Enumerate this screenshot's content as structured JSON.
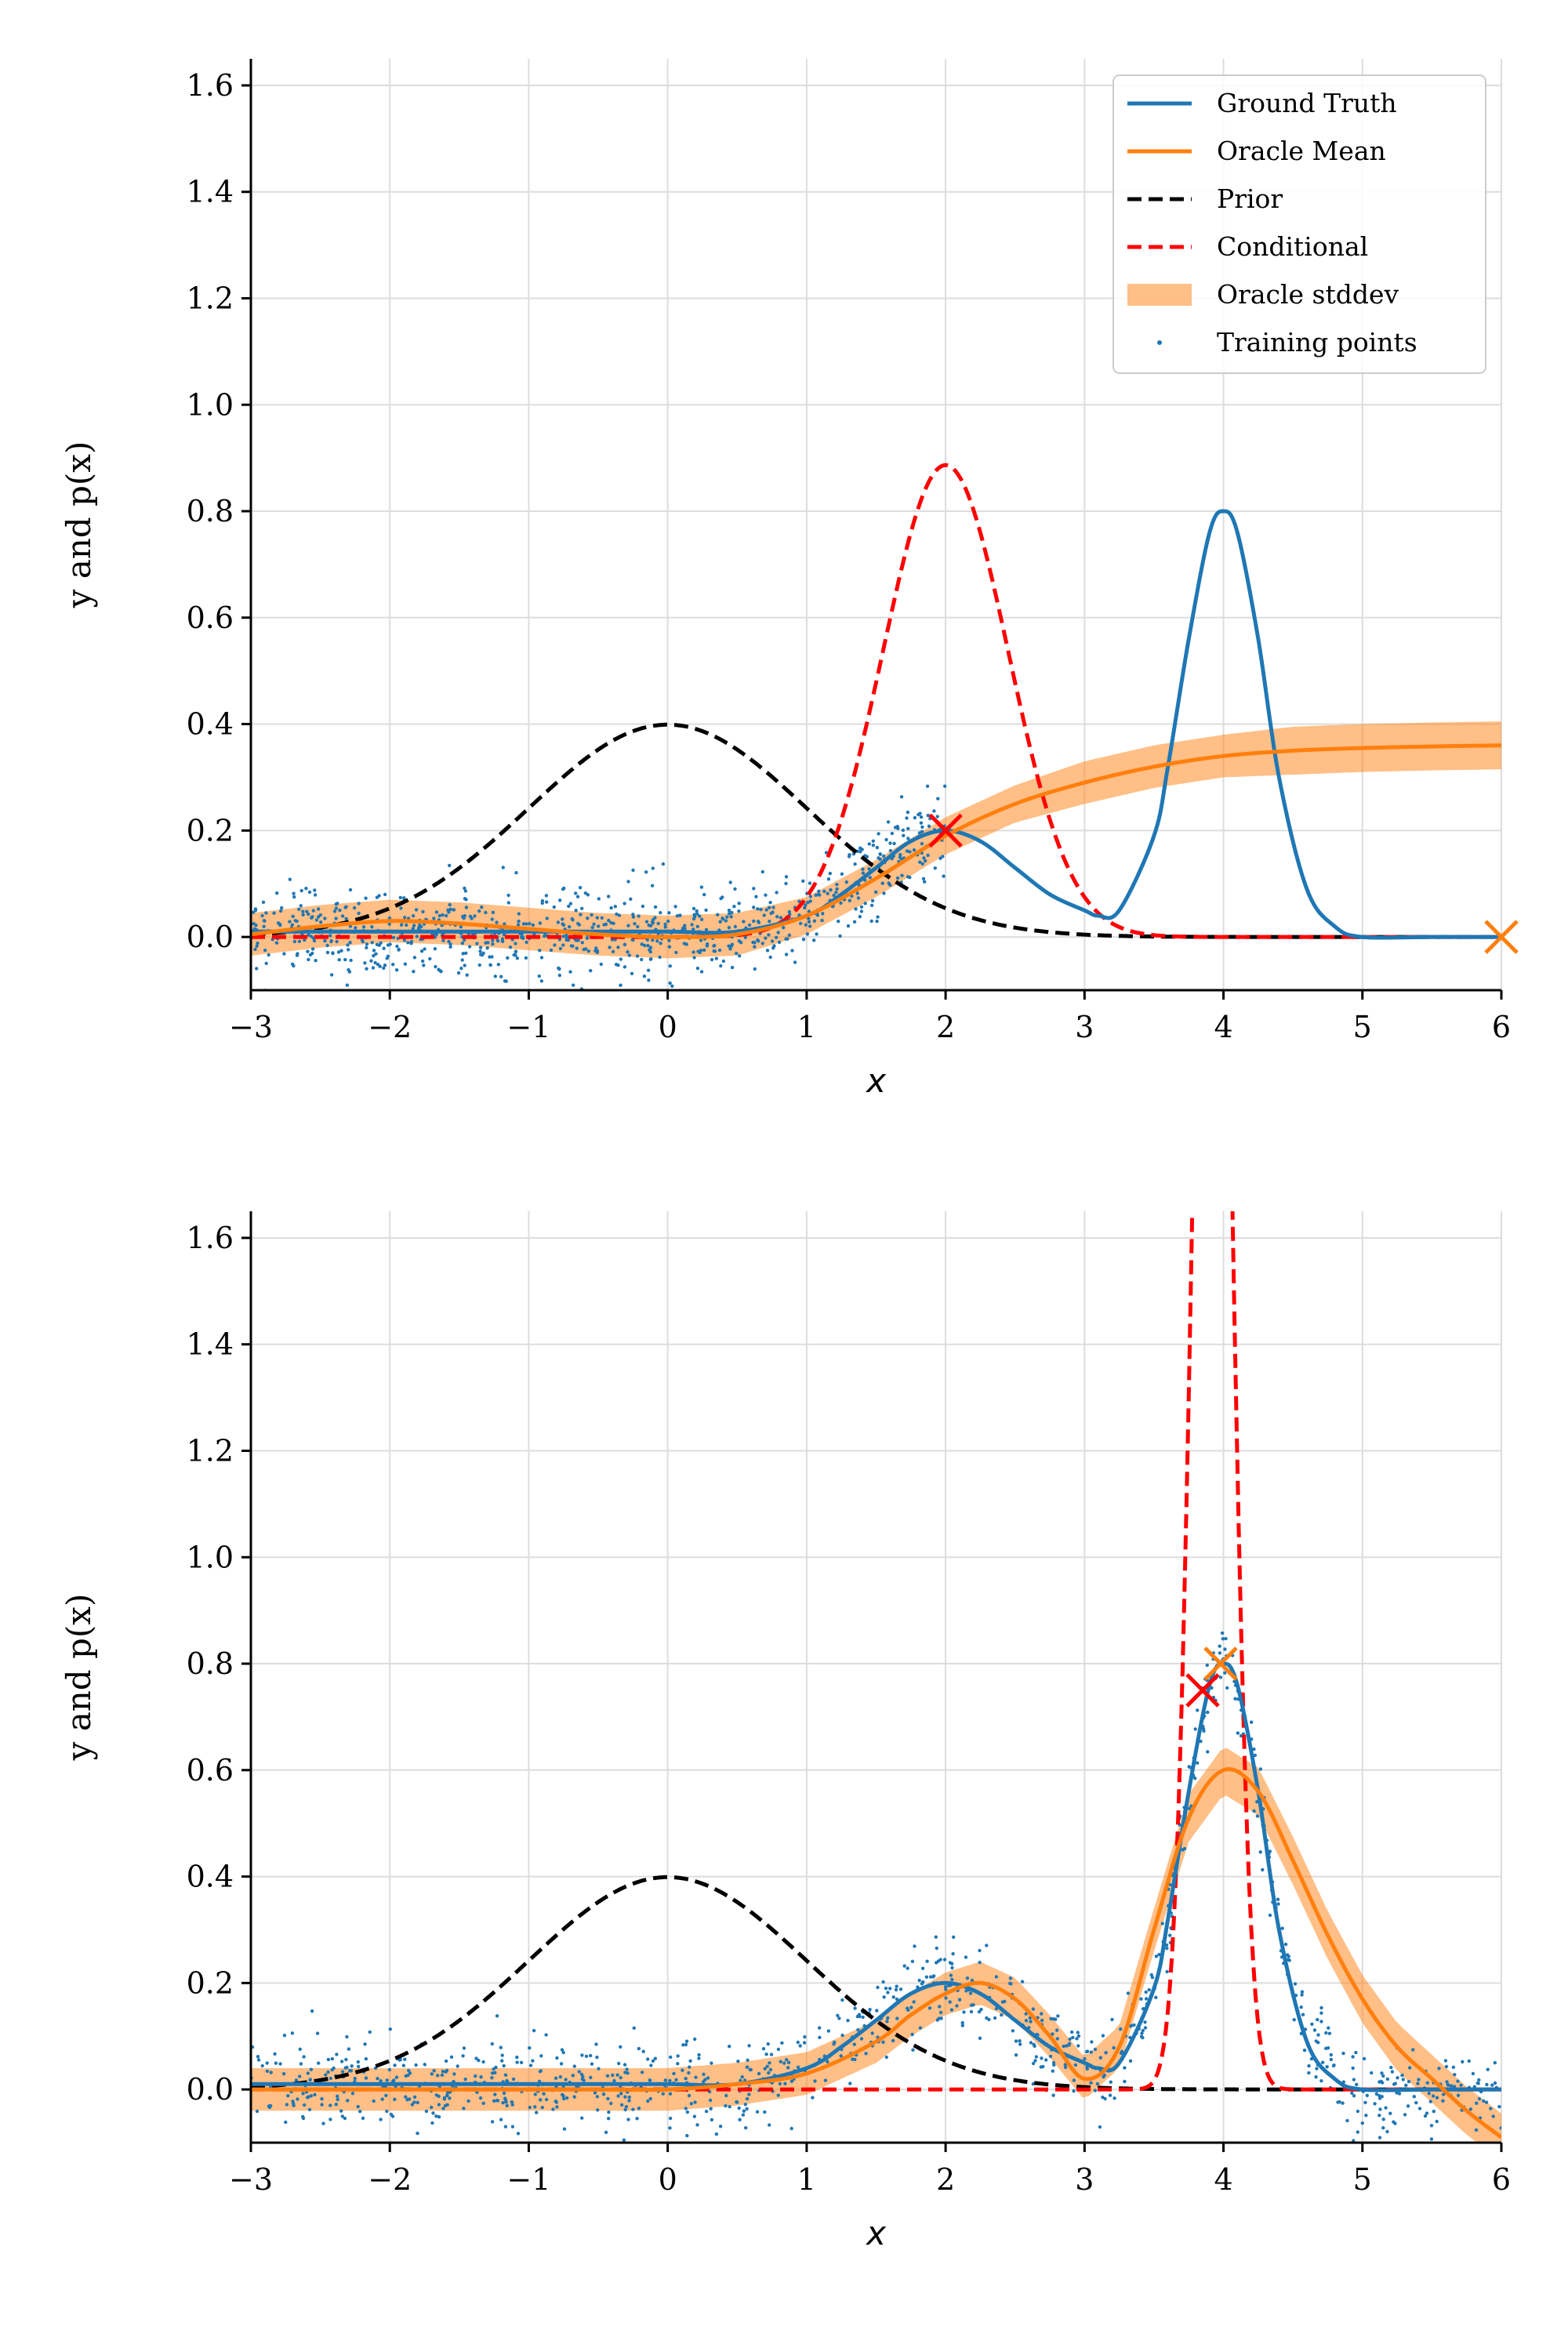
{
  "colors": {
    "ground_truth": "#1f77b4",
    "oracle_mean": "#ff7f0e",
    "oracle_band": "#ff7f0e",
    "prior": "#000000",
    "conditional": "#ff0000",
    "points": "#1f77b4",
    "grid": "#dddddd"
  },
  "chart_data": [
    {
      "type": "line",
      "panel": "top",
      "xlabel": "x",
      "ylabel": "y and p(x)",
      "xlim": [
        -3,
        6
      ],
      "ylim": [
        -0.1,
        1.65
      ],
      "xticks": [
        -3,
        -2,
        -1,
        0,
        1,
        2,
        3,
        4,
        5,
        6
      ],
      "xtick_labels": [
        "−3",
        "−2",
        "−1",
        "0",
        "1",
        "2",
        "3",
        "4",
        "5",
        "6"
      ],
      "yticks": [
        0.0,
        0.2,
        0.4,
        0.6,
        0.8,
        1.0,
        1.2,
        1.4,
        1.6
      ],
      "ytick_labels": [
        "0.0",
        "0.2",
        "0.4",
        "0.6",
        "0.8",
        "1.0",
        "1.2",
        "1.4",
        "1.6"
      ],
      "grid": true,
      "legend": {
        "placement": "top-right",
        "entries": [
          "Ground Truth",
          "Oracle Mean",
          "Prior",
          "Conditional",
          "Oracle stddev",
          "Training points"
        ]
      },
      "series": [
        {
          "name": "Ground Truth",
          "style": "solid",
          "color": "#1f77b4",
          "x": [
            -3,
            -2.5,
            -2,
            -1.5,
            -1,
            -0.5,
            0,
            0.5,
            1,
            1.25,
            1.5,
            1.75,
            2,
            2.25,
            2.5,
            2.75,
            3,
            3.1,
            3.25,
            3.5,
            3.6,
            3.75,
            3.9,
            4,
            4.1,
            4.25,
            4.4,
            4.6,
            4.8,
            5,
            5.5,
            6
          ],
          "y": [
            0.01,
            0.01,
            0.01,
            0.01,
            0.01,
            0.01,
            0.01,
            0.01,
            0.04,
            0.08,
            0.13,
            0.18,
            0.2,
            0.18,
            0.13,
            0.08,
            0.05,
            0.04,
            0.05,
            0.19,
            0.32,
            0.56,
            0.76,
            0.8,
            0.76,
            0.56,
            0.3,
            0.09,
            0.02,
            0.0,
            0.0,
            0.0
          ]
        },
        {
          "name": "Oracle Mean",
          "style": "solid",
          "color": "#ff7f0e",
          "x": [
            -3,
            -2.5,
            -2,
            -1.5,
            -1,
            -0.5,
            0,
            0.5,
            1,
            1.5,
            2,
            2.5,
            3,
            3.5,
            4,
            4.5,
            5,
            5.5,
            6
          ],
          "y": [
            0.005,
            0.02,
            0.03,
            0.025,
            0.015,
            0.005,
            0.0,
            0.005,
            0.04,
            0.11,
            0.19,
            0.25,
            0.29,
            0.32,
            0.34,
            0.35,
            0.355,
            0.358,
            0.36
          ],
          "stddev": [
            0.04,
            0.04,
            0.04,
            0.04,
            0.04,
            0.04,
            0.04,
            0.04,
            0.035,
            0.035,
            0.035,
            0.035,
            0.04,
            0.04,
            0.04,
            0.045,
            0.045,
            0.045,
            0.045
          ]
        },
        {
          "name": "Prior",
          "style": "dashed",
          "color": "#000000",
          "distribution": "normal",
          "mean": 0.0,
          "std": 1.0,
          "scale": 1.0
        },
        {
          "name": "Conditional",
          "style": "dashed",
          "color": "#ff0000",
          "distribution": "normal",
          "mean": 2.0,
          "std": 0.45,
          "scale": 1.0
        }
      ],
      "markers": [
        {
          "x": 2.0,
          "y": 0.2,
          "color": "#ff0000",
          "symbol": "x"
        },
        {
          "x": 6.0,
          "y": 0.0,
          "color": "#ff7f0e",
          "symbol": "x"
        }
      ],
      "training_points": {
        "count": 900,
        "x_range": [
          -3,
          2
        ],
        "noise_std": 0.04,
        "follows": "Ground Truth"
      }
    },
    {
      "type": "line",
      "panel": "bottom",
      "xlabel": "x",
      "ylabel": "y and p(x)",
      "xlim": [
        -3,
        6
      ],
      "ylim": [
        -0.1,
        1.65
      ],
      "xticks": [
        -3,
        -2,
        -1,
        0,
        1,
        2,
        3,
        4,
        5,
        6
      ],
      "xtick_labels": [
        "−3",
        "−2",
        "−1",
        "0",
        "1",
        "2",
        "3",
        "4",
        "5",
        "6"
      ],
      "yticks": [
        0.0,
        0.2,
        0.4,
        0.6,
        0.8,
        1.0,
        1.2,
        1.4,
        1.6
      ],
      "ytick_labels": [
        "0.0",
        "0.2",
        "0.4",
        "0.6",
        "0.8",
        "1.0",
        "1.2",
        "1.4",
        "1.6"
      ],
      "grid": true,
      "series": [
        {
          "name": "Ground Truth",
          "style": "solid",
          "color": "#1f77b4",
          "x": [
            -3,
            -2.5,
            -2,
            -1.5,
            -1,
            -0.5,
            0,
            0.5,
            1,
            1.25,
            1.5,
            1.75,
            2,
            2.25,
            2.5,
            2.75,
            3,
            3.1,
            3.25,
            3.5,
            3.6,
            3.75,
            3.9,
            4,
            4.1,
            4.25,
            4.4,
            4.6,
            4.8,
            5,
            5.5,
            6
          ],
          "y": [
            0.01,
            0.01,
            0.01,
            0.01,
            0.01,
            0.01,
            0.01,
            0.01,
            0.04,
            0.08,
            0.13,
            0.18,
            0.2,
            0.18,
            0.13,
            0.08,
            0.05,
            0.04,
            0.05,
            0.19,
            0.32,
            0.56,
            0.76,
            0.8,
            0.76,
            0.56,
            0.3,
            0.09,
            0.02,
            0.0,
            0.0,
            0.0
          ]
        },
        {
          "name": "Oracle Mean",
          "style": "solid",
          "color": "#ff7f0e",
          "x": [
            -3,
            -2.5,
            -2,
            -1.5,
            -1,
            -0.5,
            0,
            0.5,
            1,
            1.5,
            1.75,
            2,
            2.25,
            2.5,
            2.75,
            3,
            3.25,
            3.5,
            3.75,
            4,
            4.25,
            4.5,
            4.75,
            5,
            5.25,
            5.5,
            5.75,
            6
          ],
          "y": [
            0.0,
            0.0,
            0.0,
            0.0,
            0.0,
            0.0,
            0.0,
            0.01,
            0.03,
            0.09,
            0.14,
            0.18,
            0.2,
            0.17,
            0.1,
            0.02,
            0.08,
            0.3,
            0.51,
            0.6,
            0.56,
            0.43,
            0.29,
            0.17,
            0.08,
            0.02,
            -0.04,
            -0.09
          ],
          "stddev": [
            0.04,
            0.04,
            0.04,
            0.04,
            0.04,
            0.04,
            0.04,
            0.04,
            0.04,
            0.04,
            0.04,
            0.04,
            0.04,
            0.04,
            0.04,
            0.04,
            0.04,
            0.04,
            0.045,
            0.045,
            0.045,
            0.045,
            0.045,
            0.045,
            0.045,
            0.045,
            0.045,
            0.045
          ]
        },
        {
          "name": "Prior",
          "style": "dashed",
          "color": "#000000",
          "distribution": "normal",
          "mean": 0.0,
          "std": 1.0,
          "scale": 1.0
        },
        {
          "name": "Conditional",
          "style": "dashed",
          "color": "#ff0000",
          "distribution": "normal",
          "mean": 3.92,
          "std": 0.13,
          "scale": 1.0
        }
      ],
      "markers": [
        {
          "x": 3.85,
          "y": 0.75,
          "color": "#ff0000",
          "symbol": "x"
        },
        {
          "x": 3.98,
          "y": 0.8,
          "color": "#ff7f0e",
          "symbol": "x"
        }
      ],
      "training_points": {
        "count": 1100,
        "x_range": [
          -3,
          6
        ],
        "noise_std": 0.04,
        "follows": "Ground Truth"
      }
    }
  ]
}
